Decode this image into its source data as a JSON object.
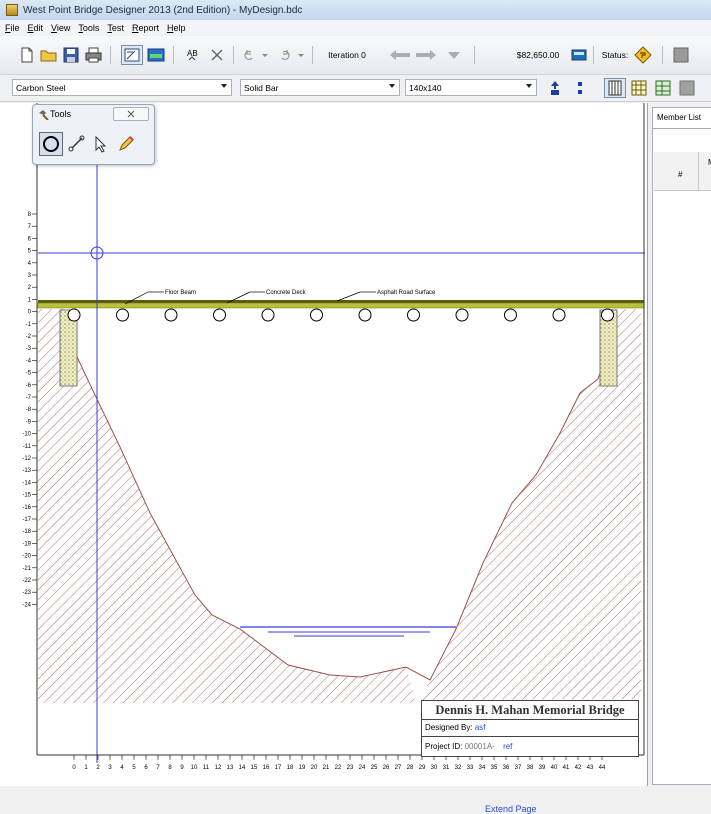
{
  "window": {
    "title": "West Point Bridge Designer 2013 (2nd Edition) - MyDesign.bdc"
  },
  "menu": [
    "File",
    "Edit",
    "View",
    "Tools",
    "Test",
    "Report",
    "Help"
  ],
  "toolbar": {
    "iteration_label": "Iteration 0",
    "cost": "$82,650.00",
    "status_label": "Status:"
  },
  "selectors": {
    "material": "Carbon Steel",
    "cross_section": "Solid Bar",
    "size": "140x140"
  },
  "tools_panel": {
    "title": "Tools",
    "tools": [
      "joint-tool",
      "member-tool",
      "select-tool",
      "eraser-tool"
    ]
  },
  "member_list": {
    "tab_label": "Member List",
    "col_number": "#",
    "col_material": "M"
  },
  "drawing": {
    "annotations": [
      "Floor Beam",
      "Concrete Deck",
      "Asphalt Road Surface"
    ],
    "y_ticks": [
      "8",
      "7",
      "6",
      "5",
      "4",
      "3",
      "2",
      "1",
      "0",
      "-1",
      "-2",
      "-3",
      "-4",
      "-5",
      "-6",
      "-7",
      "-8",
      "-9",
      "-10",
      "-11",
      "-12",
      "-13",
      "-14",
      "-15",
      "-16",
      "-17",
      "-18",
      "-19",
      "-20",
      "-21",
      "-22",
      "-23",
      "-24"
    ],
    "x_ticks": [
      "0",
      "1",
      "2",
      "3",
      "4",
      "5",
      "6",
      "7",
      "8",
      "9",
      "10",
      "11",
      "12",
      "13",
      "14",
      "15",
      "16",
      "17",
      "18",
      "19",
      "20",
      "21",
      "22",
      "23",
      "24",
      "25",
      "26",
      "27",
      "28",
      "29",
      "30",
      "31",
      "32",
      "33",
      "34",
      "35",
      "36",
      "37",
      "38",
      "39",
      "40",
      "41",
      "42",
      "43",
      "44"
    ]
  },
  "title_block": {
    "bridge_name": "Dennis H. Mahan Memorial Bridge",
    "designed_by_label": "Designed By:",
    "designed_by": "asf",
    "project_id_label": "Project ID:",
    "project_id": "00001A-",
    "project_ref": "ref"
  },
  "statusbar": {
    "link": "Extend Page"
  },
  "colors": {
    "guide": "#3b3bdd",
    "terrain": "#a0504a",
    "deck": "#b7c23a",
    "water": "#3b3bdd"
  }
}
